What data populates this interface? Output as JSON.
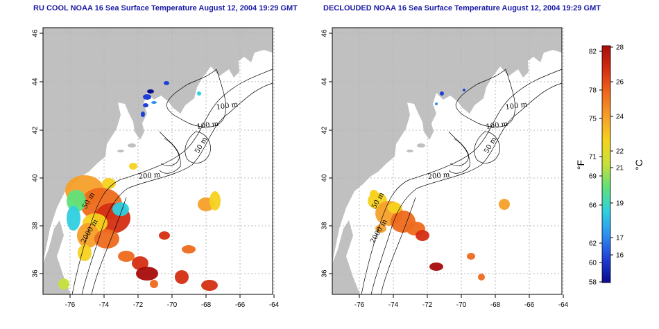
{
  "panels": [
    {
      "title": "RU COOL NOAA 16 Sea Surface Temperature August 12, 2004 19:29 GMT",
      "x_ticks": [
        "-76",
        "-74",
        "-72",
        "-70",
        "-68",
        "-66",
        "-64"
      ],
      "y_ticks": [
        "36",
        "38",
        "40",
        "42",
        "44",
        "46"
      ],
      "contour_labels": [
        "100 m",
        "100 m",
        "50 m",
        "200 m",
        "50 m",
        "2000 m"
      ]
    },
    {
      "title": "DECLOUDED NOAA 16 Sea Surface Temperature August 12, 2004 19:29 GMT",
      "x_ticks": [
        "-76",
        "-74",
        "-72",
        "-70",
        "-68",
        "-66",
        "-64"
      ],
      "y_ticks": [
        "36",
        "38",
        "40",
        "42",
        "44",
        "46"
      ],
      "contour_labels": [
        "100 m",
        "100 m",
        "50 m",
        "200 m",
        "50 m",
        "2000 m"
      ]
    }
  ],
  "colorbar": {
    "fahrenheit_unit": "°F",
    "celsius_unit": "°C",
    "fahrenheit_ticks": [
      "82",
      "78",
      "75",
      "71",
      "69",
      "66",
      "62",
      "60",
      "58"
    ],
    "celsius_ticks": [
      "28",
      "26",
      "24",
      "22",
      "21",
      "19",
      "17",
      "16"
    ],
    "colors": [
      "#0a0a8c",
      "#1f3fd6",
      "#2f8ff0",
      "#2fd0e0",
      "#5fe07a",
      "#c8e03a",
      "#f5d21e",
      "#f5a02a",
      "#ee6a1e",
      "#d42e12",
      "#a80c0c"
    ]
  },
  "map_colors": {
    "land": "#c0c0c0",
    "grid": "#b4b4b4"
  }
}
